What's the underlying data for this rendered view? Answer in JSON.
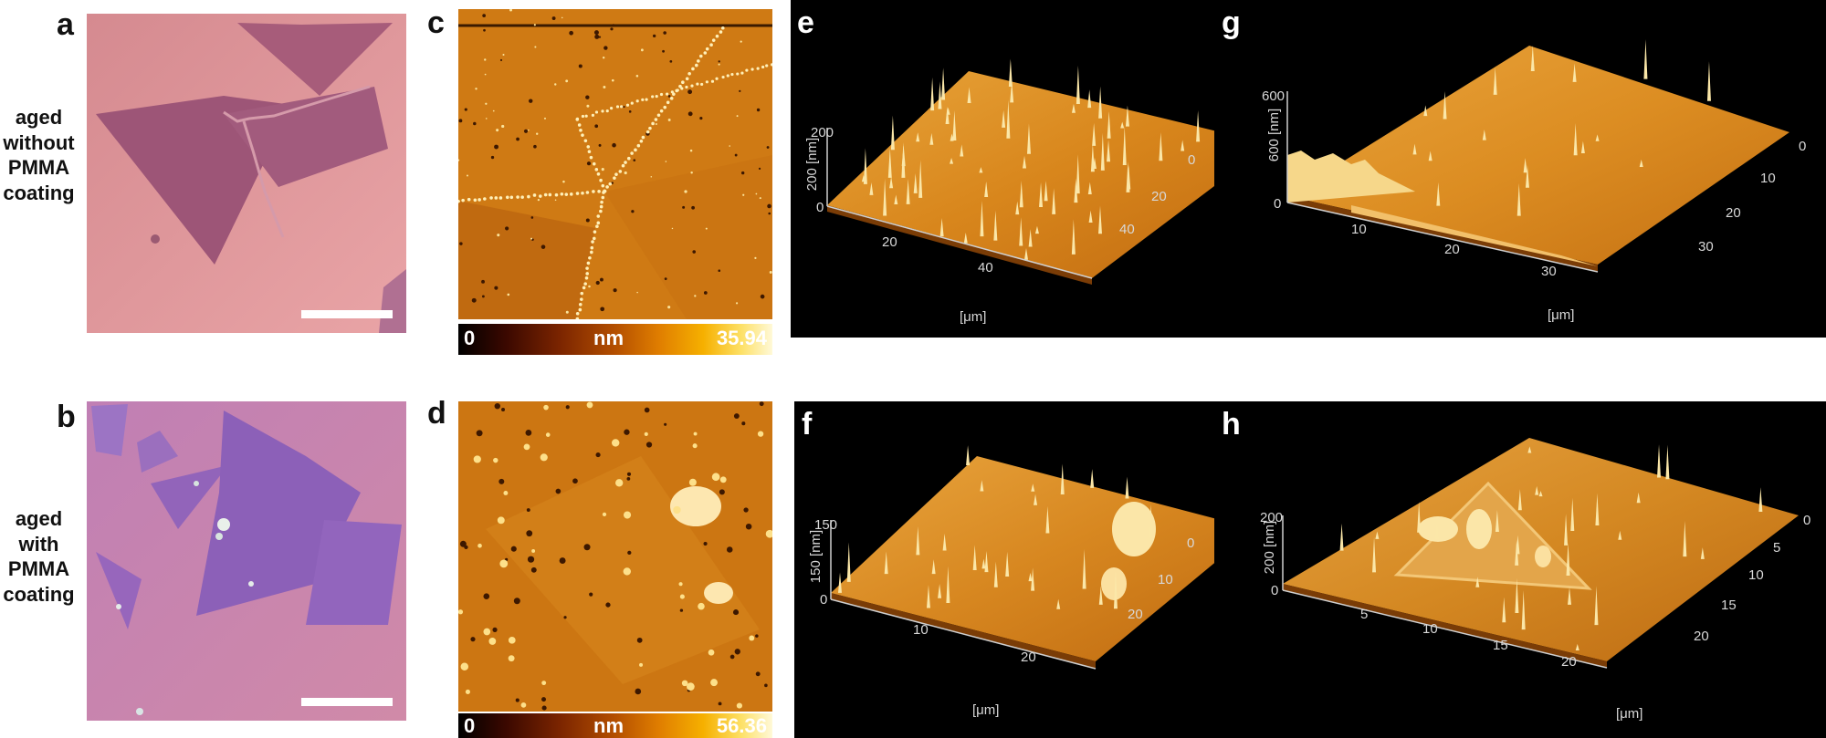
{
  "panels": {
    "a": "a",
    "b": "b",
    "c": "c",
    "d": "d",
    "e": "e",
    "f": "f",
    "g": "g",
    "h": "h"
  },
  "rows": {
    "top_label": [
      "aged",
      "without",
      "PMMA",
      "coating"
    ],
    "bottom_label": [
      "aged",
      "with",
      "PMMA",
      "coating"
    ]
  },
  "colorbars": {
    "c": {
      "min": "0",
      "unit": "nm",
      "max": "35.94"
    },
    "d": {
      "min": "0",
      "unit": "nm",
      "max": "56.36"
    }
  },
  "afm3d": {
    "e": {
      "z_label": "200 [nm]",
      "z_ticks": [
        "200",
        "0"
      ],
      "x_ticks": [
        "20",
        "40"
      ],
      "y_ticks": [
        "0",
        "20",
        "40"
      ],
      "x_unit": "[μm]"
    },
    "f": {
      "z_label": "150 [nm]",
      "z_ticks": [
        "150",
        "0"
      ],
      "x_ticks": [
        "10",
        "20"
      ],
      "y_ticks": [
        "0",
        "10",
        "20"
      ],
      "x_unit": "[μm]"
    },
    "g": {
      "z_label": "600 [nm]",
      "z_ticks": [
        "600",
        "0"
      ],
      "x_ticks": [
        "10",
        "20",
        "30"
      ],
      "y_ticks": [
        "0",
        "10",
        "20",
        "30"
      ],
      "x_unit": "[μm]"
    },
    "h": {
      "z_label": "200 [nm]",
      "z_ticks": [
        "200",
        "0"
      ],
      "x_ticks": [
        "5",
        "10",
        "15",
        "20"
      ],
      "y_ticks": [
        "0",
        "5",
        "10",
        "15",
        "20"
      ],
      "x_unit": "[μm]"
    }
  },
  "colors": {
    "optical_top": "#d98f95",
    "optical_bottom": "#c27ab0",
    "afm_base": "#cf7a14",
    "panel_bg": "#000000"
  }
}
